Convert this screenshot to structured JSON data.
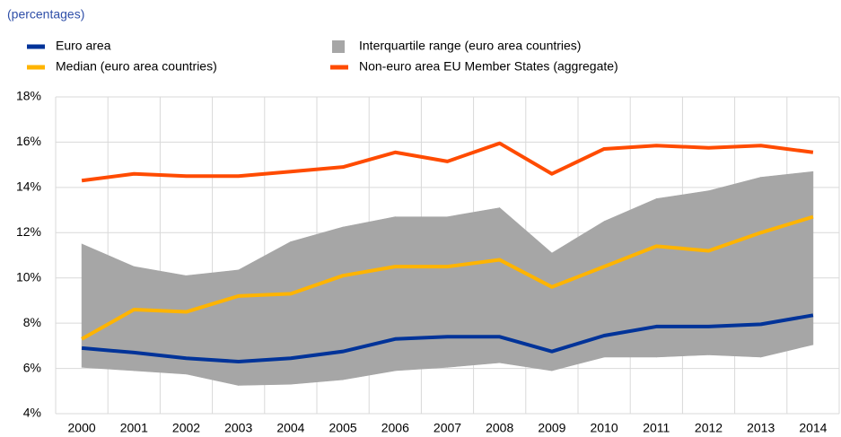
{
  "chart_data": {
    "type": "line",
    "subtitle": "(percentages)",
    "categories": [
      "2000",
      "2001",
      "2002",
      "2003",
      "2004",
      "2005",
      "2006",
      "2007",
      "2008",
      "2009",
      "2010",
      "2011",
      "2012",
      "2013",
      "2014"
    ],
    "series": [
      {
        "name": "Euro area",
        "color": "#003399",
        "values": [
          6.9,
          6.7,
          6.45,
          6.3,
          6.45,
          6.75,
          7.3,
          7.4,
          7.4,
          6.75,
          7.45,
          7.85,
          7.85,
          7.95,
          8.35
        ]
      },
      {
        "name": "Interquartile range (euro area countries)",
        "color": "#a6a6a6",
        "type": "band",
        "low": [
          6.05,
          5.9,
          5.75,
          5.25,
          5.3,
          5.5,
          5.9,
          6.05,
          6.25,
          5.9,
          6.5,
          6.5,
          6.6,
          6.5,
          7.05
        ],
        "high": [
          11.5,
          10.5,
          10.1,
          10.35,
          11.6,
          12.25,
          12.7,
          12.7,
          13.1,
          11.1,
          12.5,
          13.5,
          13.85,
          14.45,
          14.7
        ]
      },
      {
        "name": "Median (euro area countries)",
        "color": "#ffb400",
        "values": [
          7.3,
          8.6,
          8.5,
          9.2,
          9.3,
          10.1,
          10.5,
          10.5,
          10.8,
          9.6,
          10.5,
          11.4,
          11.2,
          12.0,
          12.7
        ]
      },
      {
        "name": "Non-euro area EU Member States (aggregate)",
        "color": "#ff4b00",
        "values": [
          14.3,
          14.6,
          14.5,
          14.5,
          14.7,
          14.9,
          15.55,
          15.15,
          15.95,
          14.6,
          15.7,
          15.85,
          15.75,
          15.85,
          15.55
        ]
      }
    ],
    "ylim": [
      4,
      18
    ],
    "yticks": [
      {
        "value": 4,
        "label": "4%"
      },
      {
        "value": 6,
        "label": "6%"
      },
      {
        "value": 8,
        "label": "8%"
      },
      {
        "value": 10,
        "label": "10%"
      },
      {
        "value": 12,
        "label": "12%"
      },
      {
        "value": 14,
        "label": "14%"
      },
      {
        "value": 16,
        "label": "16%"
      },
      {
        "value": 18,
        "label": "18%"
      }
    ],
    "grid": true
  }
}
